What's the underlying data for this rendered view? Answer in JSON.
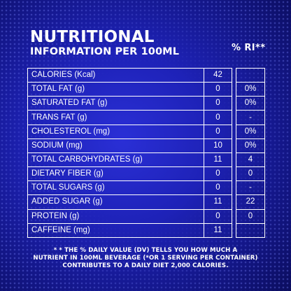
{
  "title": {
    "line1": "NUTRITIONAL",
    "line2": "INFORMATION PER 100ML"
  },
  "table": {
    "ri_header": "% RI**",
    "rows": [
      {
        "label": "CALORIES (Kcal)",
        "value": "42",
        "ri": ""
      },
      {
        "label": "TOTAL FAT (g)",
        "value": "0",
        "ri": "0%"
      },
      {
        "label": "SATURATED FAT (g)",
        "value": "0",
        "ri": "0%"
      },
      {
        "label": "TRANS FAT (g)",
        "value": "0",
        "ri": "-"
      },
      {
        "label": "CHOLESTEROL  (mg)",
        "value": "0",
        "ri": "0%"
      },
      {
        "label": "SODIUM (mg)",
        "value": "10",
        "ri": "0%"
      },
      {
        "label": "TOTAL CARBOHYDRATES (g)",
        "value": "11",
        "ri": "4"
      },
      {
        "label": "DIETARY FIBER (g)",
        "value": "0",
        "ri": "0"
      },
      {
        "label": "TOTAL SUGARS (g)",
        "value": "0",
        "ri": "-"
      },
      {
        "label": "ADDED SUGAR (g)",
        "value": "11",
        "ri": "22"
      },
      {
        "label": "PROTEIN (g)",
        "value": "0",
        "ri": "0"
      },
      {
        "label": "CAFFEINE (mg)",
        "value": "11",
        "ri": ""
      }
    ]
  },
  "footnote": {
    "line1": "* * THE % DAILY VALUE (DV) TELLS YOU HOW MUCH A",
    "line2": "NUTRIENT IN 100ML BEVERAGE (*OR 1 SERVING PER CONTAINER)",
    "line3": "CONTRIBUTES TO A DAILY DIET 2,000 CALORIES."
  },
  "colors": {
    "background": "#1e22b8",
    "background_edge": "#0b0d5e",
    "text": "#ffffff",
    "rule": "#ffffff"
  }
}
